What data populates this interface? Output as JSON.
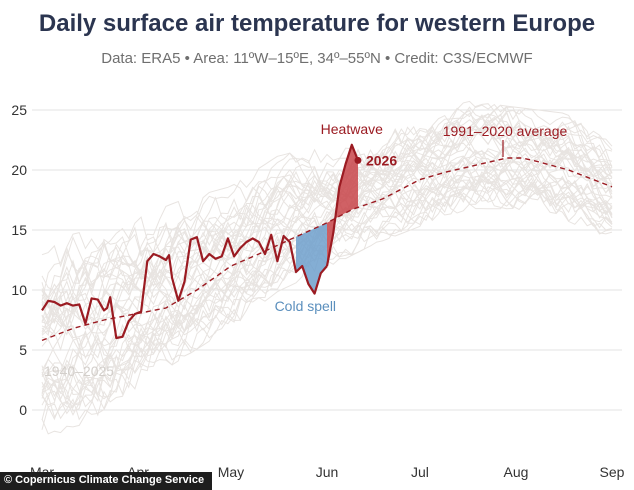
{
  "header": {
    "title": "Daily surface air temperature for western Europe",
    "subtitle": "Data: ERA5 • Area: 11ºW–15ºE, 34º–55ºN • Credit: C3S/ECMWF"
  },
  "footer": {
    "credit": "© Copernicus Climate Change Service"
  },
  "chart_data": {
    "type": "line",
    "title": "Daily surface air temperature for western Europe",
    "subtitle": "Data: ERA5 • Area: 11ºW–15ºE, 34º–55ºN • Credit: C3S/ECMWF",
    "xlabel": "",
    "ylabel": "",
    "ylim": [
      -3.5,
      26.5
    ],
    "xlim": [
      0,
      184
    ],
    "x_ticks": [
      {
        "x": 0,
        "label": "Mar"
      },
      {
        "x": 31,
        "label": "Apr"
      },
      {
        "x": 61,
        "label": "May"
      },
      {
        "x": 92,
        "label": "Jun"
      },
      {
        "x": 122,
        "label": "Jul"
      },
      {
        "x": 153,
        "label": "Aug"
      },
      {
        "x": 184,
        "label": "Sep"
      }
    ],
    "y_ticks": [
      0,
      5,
      10,
      15,
      20,
      25
    ],
    "grid": true,
    "colors": {
      "current": "#9b1b22",
      "average": "#9b1b22",
      "historical": "#e8e4e1",
      "heatwave_fill": "#c8454a",
      "coldspell_fill": "#6fa0cc",
      "coldspell_text": "#5b8fbd",
      "historical_label": "#d3cfcb"
    },
    "annotations": {
      "heatwave": "Heatwave",
      "cold_spell": "Cold spell",
      "year_label": "2026",
      "average_label": "1991–2020 average",
      "historical_label": "1940–2025"
    },
    "series": [
      {
        "name": "2026",
        "x": [
          0,
          2,
          4,
          6,
          8,
          10,
          12,
          14,
          16,
          18,
          20,
          21,
          22,
          24,
          26,
          28,
          30,
          32,
          34,
          36,
          38,
          40,
          41,
          42,
          44,
          46,
          48,
          50,
          52,
          54,
          56,
          58,
          60,
          62,
          64,
          66,
          68,
          70,
          72,
          74,
          76,
          78,
          80,
          82,
          84,
          86,
          88,
          90,
          92
        ],
        "values": [
          8.3,
          9.1,
          9.0,
          8.7,
          8.9,
          8.7,
          8.8,
          7.2,
          9.3,
          9.2,
          8.3,
          8.5,
          9.4,
          6.0,
          6.1,
          7.4,
          8.0,
          8.2,
          12.4,
          13.0,
          12.8,
          12.5,
          12.9,
          11.0,
          9.1,
          10.7,
          14.2,
          14.4,
          12.4,
          13.0,
          12.6,
          12.8,
          14.3,
          12.8,
          13.5,
          14.0,
          14.3,
          14.0,
          13.0,
          14.6,
          12.4,
          14.5,
          14.0,
          11.5,
          12.0,
          10.5,
          9.7,
          11.4,
          12.0
        ]
      },
      {
        "name": "2026 (heatwave)",
        "x": [
          92,
          94,
          96,
          98,
          100,
          102
        ],
        "values": [
          12.0,
          14.7,
          18.6,
          20.5,
          22.1,
          20.8
        ]
      },
      {
        "name": "1991–2020 average",
        "x": [
          0,
          10,
          20,
          30,
          40,
          50,
          61,
          70,
          80,
          92,
          100,
          110,
          122,
          130,
          140,
          150,
          155,
          160,
          170,
          184
        ],
        "values": [
          5.8,
          6.8,
          7.5,
          8.0,
          8.5,
          10.0,
          12.0,
          13.0,
          14.2,
          15.6,
          16.7,
          17.6,
          19.2,
          19.8,
          20.4,
          21.0,
          21.0,
          20.7,
          20.0,
          18.6
        ]
      }
    ],
    "historical_envelope": {
      "name": "1940–2025",
      "x": [
        0,
        15,
        31,
        46,
        61,
        76,
        92,
        107,
        122,
        138,
        153,
        169,
        184
      ],
      "low": [
        -3.0,
        -1.5,
        1.5,
        4.0,
        6.5,
        9.5,
        11.5,
        13.5,
        15.0,
        16.5,
        16.5,
        15.5,
        14.0
      ],
      "high": [
        14.5,
        15.5,
        16.5,
        18.0,
        19.0,
        21.5,
        22.5,
        23.5,
        25.0,
        26.0,
        25.5,
        25.0,
        22.5
      ]
    }
  }
}
